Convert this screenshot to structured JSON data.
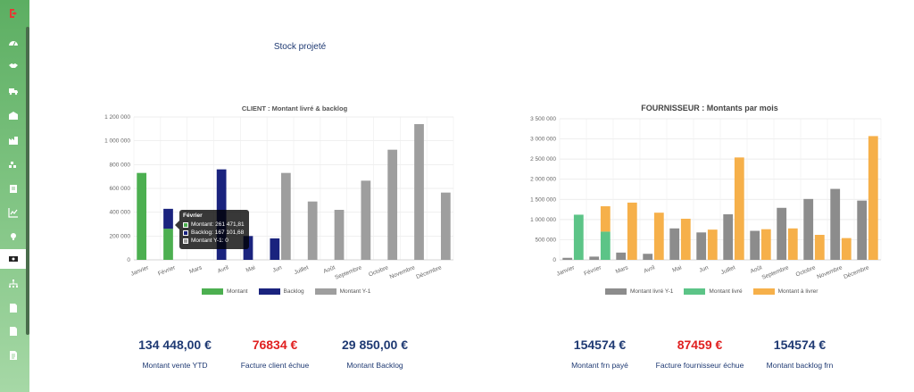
{
  "sidebar": {
    "items": [
      {
        "icon": "logout-icon"
      },
      {
        "icon": "dashboard-icon"
      },
      {
        "icon": "handshake-icon"
      },
      {
        "icon": "truck-icon"
      },
      {
        "icon": "warehouse-icon"
      },
      {
        "icon": "factory-icon"
      },
      {
        "icon": "cubes-icon"
      },
      {
        "icon": "clipboard-icon"
      },
      {
        "icon": "line-chart-icon"
      },
      {
        "icon": "lightbulb-icon"
      },
      {
        "icon": "money-icon",
        "active": true
      },
      {
        "icon": "sitemap-icon"
      },
      {
        "icon": "document-icon"
      },
      {
        "icon": "file-icon"
      },
      {
        "icon": "file-text-icon"
      }
    ]
  },
  "header": {
    "stock_link": "Stock projeté"
  },
  "client_chart": {
    "tooltip": {
      "title": "Février",
      "lines": [
        "Montant: 261 471,81",
        "Backlog: 167 101,68",
        "Montant Y-1: 0"
      ],
      "colors": [
        "#4caf50",
        "#1a237e",
        "#9e9e9e"
      ]
    }
  },
  "chart_data": [
    {
      "type": "bar",
      "title": "CLIENT : Montant livré & backlog",
      "categories": [
        "Janvier",
        "Février",
        "Mars",
        "Avril",
        "Mai",
        "Jun",
        "Juillet",
        "Août",
        "Septembre",
        "Octobre",
        "Novembre",
        "Décembre"
      ],
      "series": [
        {
          "name": "Montant",
          "color": "#4caf50",
          "values": [
            730000,
            261472,
            0,
            0,
            0,
            0,
            0,
            0,
            0,
            0,
            0,
            0
          ]
        },
        {
          "name": "Backlog",
          "color": "#1a237e",
          "values": [
            0,
            167102,
            0,
            760000,
            200000,
            180000,
            0,
            0,
            0,
            0,
            0,
            0
          ]
        },
        {
          "name": "Montant Y-1",
          "color": "#9e9e9e",
          "values": [
            0,
            0,
            0,
            0,
            0,
            730000,
            490000,
            420000,
            665000,
            925000,
            1140000,
            565000
          ]
        }
      ],
      "stacking": [
        [
          "Montant",
          "Backlog"
        ],
        [
          "Montant Y-1"
        ]
      ],
      "ylim": [
        0,
        1200000
      ],
      "yticks": [
        "0",
        "200 000",
        "400 000",
        "600 000",
        "800 000",
        "1 000 000",
        "1 200 000"
      ],
      "grid": true,
      "legend": "bottom"
    },
    {
      "type": "bar",
      "title": "FOURNISSEUR : Montants par mois",
      "categories": [
        "Janvier",
        "Février",
        "Mars",
        "Avril",
        "Mai",
        "Jun",
        "Juillet",
        "Août",
        "Septembre",
        "Octobre",
        "Novembre",
        "Décembre"
      ],
      "series": [
        {
          "name": "Montant livré Y-1",
          "color": "#8c8c8c",
          "values": [
            50000,
            80000,
            180000,
            150000,
            780000,
            680000,
            1130000,
            720000,
            1290000,
            1510000,
            1760000,
            1470000
          ]
        },
        {
          "name": "Montant livré",
          "color": "#5cc487",
          "values": [
            1120000,
            700000,
            0,
            0,
            0,
            0,
            0,
            0,
            0,
            0,
            0,
            0
          ]
        },
        {
          "name": "Montant à livrer",
          "color": "#f6b04a",
          "values": [
            0,
            630000,
            1420000,
            1170000,
            1020000,
            750000,
            2540000,
            760000,
            780000,
            620000,
            540000,
            3070000
          ]
        }
      ],
      "stacking": [
        [
          "Montant livré Y-1"
        ],
        [
          "Montant livré",
          "Montant à livrer"
        ]
      ],
      "ylim": [
        0,
        3500000
      ],
      "yticks": [
        "0",
        "500 000",
        "1 000 000",
        "1 500 000",
        "2 000 000",
        "2 500 000",
        "3 000 000",
        "3 500 000"
      ],
      "grid": true,
      "legend": "bottom"
    }
  ],
  "kpis": [
    {
      "value": "134 448,00 €",
      "label": "Montant vente YTD",
      "color": "blue"
    },
    {
      "value": "76834 €",
      "label": "Facture client échue",
      "color": "red"
    },
    {
      "value": "29 850,00 €",
      "label": "Montant Backlog",
      "color": "blue"
    },
    {
      "value": "154574 €",
      "label": "Montant frn payé",
      "color": "blue"
    },
    {
      "value": "87459 €",
      "label": "Facture fournisseur échue",
      "color": "red"
    },
    {
      "value": "154574 €",
      "label": "Montant backlog frn",
      "color": "blue"
    }
  ]
}
